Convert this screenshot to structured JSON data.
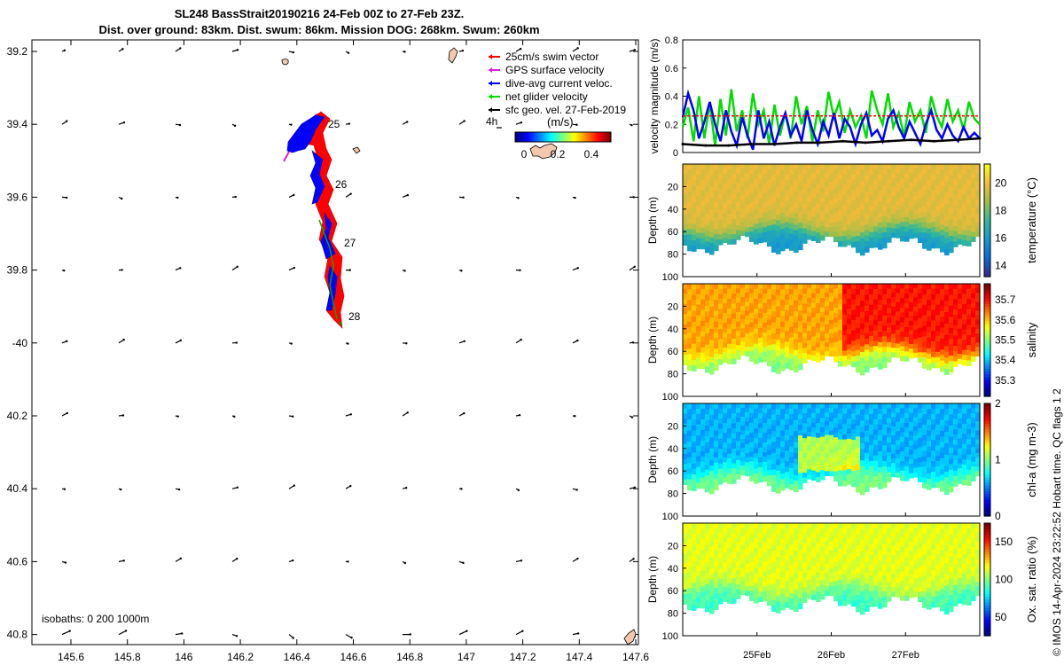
{
  "header": {
    "title_line1": "SL248 BassStrait20190216 24-Feb 00Z to 27-Feb 23Z.",
    "title_line2": "Dist. over ground: 83km. Dist. swum: 86km. Mission DOG: 268km. Swum: 260km"
  },
  "map": {
    "lon_ticks": [
      "145.6",
      "145.8",
      "146",
      "146.2",
      "146.4",
      "146.6",
      "146.8",
      "147",
      "147.2",
      "147.4",
      "147.6"
    ],
    "lat_ticks": [
      "39.2",
      "39.4",
      "39.6",
      "39.8",
      "-40",
      "40.2",
      "40.4",
      "40.6",
      "40.8"
    ],
    "day_labels": [
      "25",
      "26",
      "27",
      "28"
    ],
    "isobaths_label": "isobaths: 0   200  1000m",
    "legend": [
      {
        "label": "25cm/s swim vector",
        "color": "#ff0000"
      },
      {
        "label": "GPS surface velocity",
        "color": "#e020e0"
      },
      {
        "label": "dive-avg current veloc.",
        "color": "#0000ff"
      },
      {
        "label": "net glider velocity",
        "color": "#00dd00"
      },
      {
        "label": "sfc geo. vel. 27-Feb-2019",
        "color": "#000000"
      }
    ],
    "scale_label": "4h",
    "colorbar_unit": "(m/s)",
    "colorbar_ticks": [
      "0",
      "0.2",
      "0.4"
    ]
  },
  "chart_data": [
    {
      "type": "line",
      "ylabel": "velocity magnitude (m/s)",
      "ylim": [
        0,
        0.8
      ],
      "yticks": [
        "0",
        "0.2",
        "0.4",
        "0.6",
        "0.8"
      ],
      "series": [
        {
          "name": "net glider velocity",
          "color": "#00dd00",
          "values": [
            0.18,
            0.32,
            0.08,
            0.4,
            0.1,
            0.35,
            0.05,
            0.38,
            0.12,
            0.45,
            0.15,
            0.3,
            0.1,
            0.42,
            0.2,
            0.3,
            0.06,
            0.34,
            0.12,
            0.28,
            0.1,
            0.4,
            0.2,
            0.33,
            0.08,
            0.3,
            0.15,
            0.43,
            0.25,
            0.36,
            0.14,
            0.3,
            0.18,
            0.26,
            0.1,
            0.44,
            0.3,
            0.2,
            0.42,
            0.18,
            0.28,
            0.12,
            0.36,
            0.22,
            0.3,
            0.14,
            0.4,
            0.26,
            0.18,
            0.38,
            0.22,
            0.3,
            0.16,
            0.36,
            0.24,
            0.2
          ]
        },
        {
          "name": "dive-avg current veloc.",
          "color": "#0000ff",
          "values": [
            0.25,
            0.42,
            0.3,
            0.1,
            0.22,
            0.36,
            0.2,
            0.08,
            0.3,
            0.15,
            0.05,
            0.25,
            0.12,
            0.02,
            0.3,
            0.1,
            0.22,
            0.05,
            0.18,
            0.28,
            0.12,
            0.2,
            0.08,
            0.3,
            0.16,
            0.06,
            0.22,
            0.12,
            0.28,
            0.1,
            0.24,
            0.18,
            0.06,
            0.2,
            0.28,
            0.12,
            0.16,
            0.08,
            0.24,
            0.3,
            0.18,
            0.1,
            0.22,
            0.14,
            0.06,
            0.2,
            0.3,
            0.16,
            0.1,
            0.2,
            0.12,
            0.08,
            0.18,
            0.1,
            0.14,
            0.1
          ]
        },
        {
          "name": "25cm/s swim vector",
          "color": "#ff0000",
          "values": [
            0.26,
            0.26
          ]
        },
        {
          "name": "sfc geo. vel.",
          "color": "#000000",
          "values": [
            0.06,
            0.05,
            0.05,
            0.06,
            0.06,
            0.07,
            0.07,
            0.08,
            0.07,
            0.08,
            0.09,
            0.08,
            0.09,
            0.1
          ]
        }
      ]
    },
    {
      "type": "heatmap",
      "ylabel": "Depth (m)",
      "clabel": "temperature (°C)",
      "ctick_labels": [
        "14",
        "16",
        "18",
        "20"
      ],
      "cticks": [
        14,
        16,
        18,
        20
      ],
      "clim": [
        13.2,
        21.4
      ],
      "cmap": "parula",
      "surface_value": 19.8,
      "deep_value": 16.0,
      "thermocline_depth": 60
    },
    {
      "type": "heatmap",
      "ylabel": "Depth (m)",
      "clabel": "salinity",
      "ctick_labels": [
        "35.3",
        "35.4",
        "35.5",
        "35.6",
        "35.7"
      ],
      "cticks": [
        35.3,
        35.4,
        35.5,
        35.6,
        35.7
      ],
      "clim": [
        35.22,
        35.78
      ],
      "cmap": "jet",
      "surface_value": 35.62,
      "deep_value": 35.5,
      "thermocline_depth": 62
    },
    {
      "type": "heatmap",
      "ylabel": "Depth (m)",
      "clabel": "chl-a (mg m-3)",
      "ctick_labels": [
        "0",
        "1",
        "2"
      ],
      "cticks": [
        0,
        1,
        2
      ],
      "clim": [
        0,
        2
      ],
      "cmap": "jet",
      "surface_value": 0.6,
      "deep_value": 1.0,
      "thermocline_depth": 62
    },
    {
      "type": "heatmap",
      "ylabel": "Depth (m)",
      "clabel": "Ox. sat. ratio (%)",
      "ctick_labels": [
        "50",
        "100",
        "150"
      ],
      "cticks": [
        50,
        100,
        150
      ],
      "clim": [
        25,
        175
      ],
      "cmap": "jet",
      "surface_value": 115,
      "deep_value": 90,
      "thermocline_depth": 60
    }
  ],
  "profile_axes": {
    "depth_ticks": [
      "20",
      "40",
      "60",
      "80",
      "100"
    ],
    "depth_values": [
      20,
      40,
      60,
      80,
      100
    ],
    "date_ticks": [
      "25Feb",
      "26Feb",
      "27Feb"
    ],
    "date_positions": [
      1,
      2,
      3
    ],
    "time_range": [
      0,
      4
    ]
  },
  "credit": "© IMOS 14-Apr-2024 23:22:52 Hobart time. QC flags 1  2"
}
